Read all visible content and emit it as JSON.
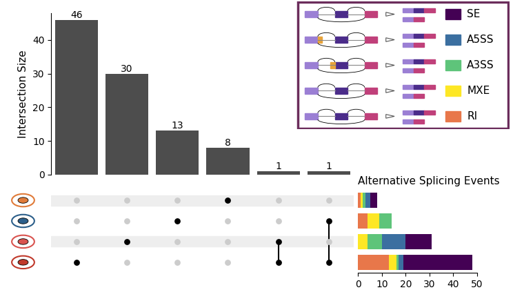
{
  "chart_data": [
    {
      "type": "bar",
      "categories": [
        null,
        null,
        null,
        null,
        null,
        null
      ],
      "values": [
        46,
        30,
        13,
        8,
        1,
        1
      ],
      "ylabel": "Intersection Size",
      "ylim": [
        0,
        48
      ],
      "yticks": [
        0,
        10,
        20,
        30,
        40
      ],
      "data_labels": true,
      "tick_labels": "y",
      "color": "#4d4d4d",
      "membership": [
        [
          0,
          0,
          0,
          1
        ],
        [
          0,
          0,
          1,
          0
        ],
        [
          0,
          1,
          0,
          0
        ],
        [
          1,
          0,
          0,
          0
        ],
        [
          0,
          0,
          1,
          1
        ],
        [
          0,
          1,
          0,
          1
        ]
      ]
    },
    {
      "type": "bar",
      "orientation": "horizontal",
      "stacked": true,
      "title": "Alternative Splicing Events",
      "categories": [
        null,
        null,
        null,
        null
      ],
      "xlim": [
        0,
        50
      ],
      "xticks": [
        0,
        10,
        20,
        30,
        40,
        50
      ],
      "tick_labels": "x",
      "legend": "upper right",
      "series": [
        {
          "name": "SE",
          "color": "#440154",
          "values": [
            3,
            0,
            11,
            29
          ]
        },
        {
          "name": "A5SS",
          "color": "#3b6fa0",
          "values": [
            2,
            0,
            10,
            2
          ]
        },
        {
          "name": "A3SS",
          "color": "#5ec47a",
          "values": [
            1,
            5,
            6,
            1
          ]
        },
        {
          "name": "MXE",
          "color": "#fde725",
          "values": [
            1,
            5,
            4,
            3
          ]
        },
        {
          "name": "RI",
          "color": "#e8774a",
          "values": [
            1,
            4,
            0,
            13
          ]
        }
      ]
    }
  ]
}
